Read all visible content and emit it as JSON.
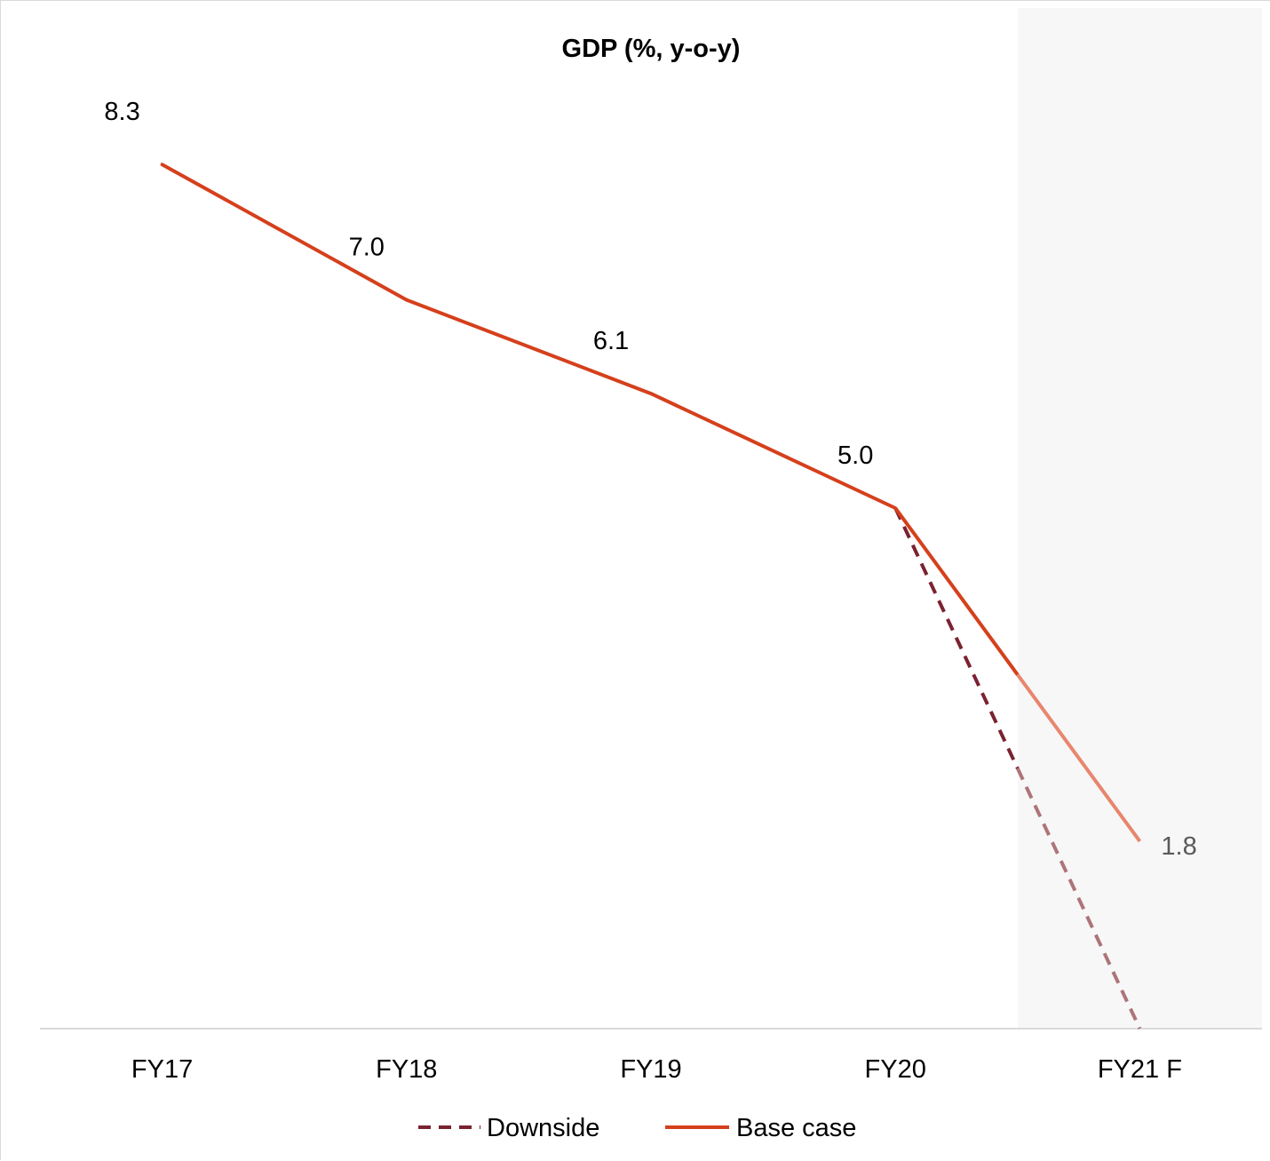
{
  "chart_data": {
    "type": "line",
    "title": "GDP (%, y-o-y)",
    "xlabel": "",
    "ylabel": "",
    "categories": [
      "FY17",
      "FY18",
      "FY19",
      "FY20",
      "FY21 F"
    ],
    "ylim": [
      0,
      9
    ],
    "grid": false,
    "y_axis_visible": false,
    "forecast_shading": {
      "from_category": "FY20",
      "to_category": "FY21 F",
      "color": "#f7f7f7"
    },
    "series": [
      {
        "name": "Downside",
        "style": "dashed",
        "color": "#7b2230",
        "forecast_color": "#ad7479",
        "values": [
          null,
          null,
          null,
          5.0,
          0.0
        ],
        "data_labels": [
          null,
          null,
          null,
          null,
          null
        ]
      },
      {
        "name": "Base case",
        "style": "solid",
        "color": "#d5401c",
        "forecast_color": "#e8866e",
        "values": [
          8.3,
          7.0,
          6.1,
          5.0,
          1.8
        ],
        "data_labels": [
          "8.3",
          "7.0",
          "6.1",
          "5.0",
          "1.8"
        ]
      }
    ],
    "legend": {
      "position": "bottom",
      "items": [
        {
          "name": "Downside",
          "style": "dashed",
          "color": "#7b2230"
        },
        {
          "name": "Base case",
          "style": "solid",
          "color": "#d5401c"
        }
      ]
    },
    "colors": {
      "axis": "#d9d9d9",
      "label_text": "#000000",
      "forecast_label_text": "#595959"
    }
  }
}
